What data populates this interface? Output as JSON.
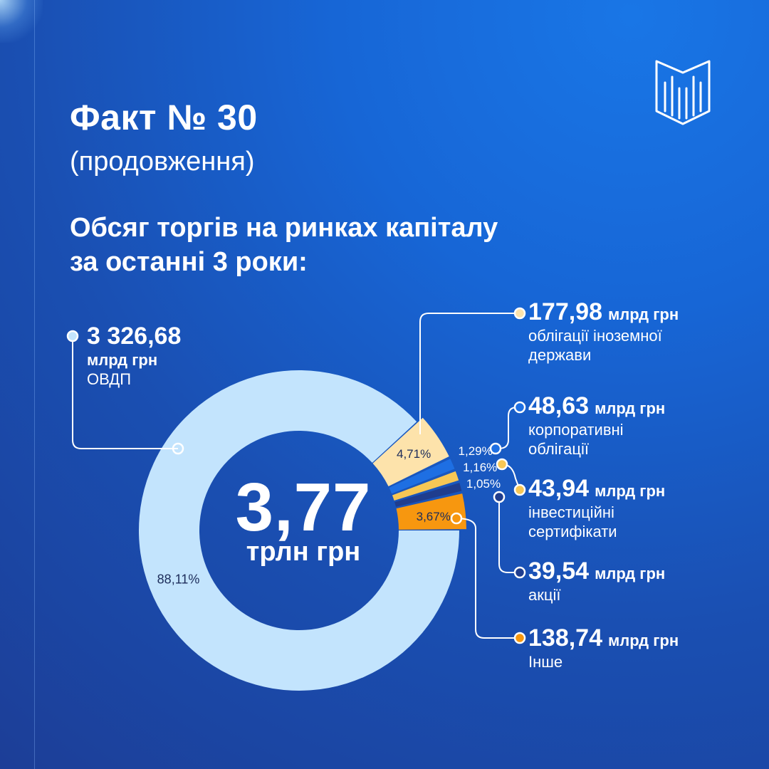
{
  "header": {
    "title": "Факт № 30",
    "subtitle": "(продовження)",
    "headline_line1": "Обсяг торгів на ринках капіталу",
    "headline_line2": "за останні 3 роки:"
  },
  "logo": {
    "icon": "book-columns-logo-icon"
  },
  "colors": {
    "ovdp": "#c3e4fd",
    "foreign": "#fde3ab",
    "corporate": "#1e6fe3",
    "investment": "#f7c755",
    "shares": "#1f3d8e",
    "other": "#f7970f"
  },
  "chart_data": {
    "type": "pie",
    "variant": "donut",
    "total": {
      "value": "3,77",
      "unit": "трлн грн"
    },
    "slices": [
      {
        "key": "ovdp",
        "amount": "3 326,68",
        "unit": "млрд грн",
        "label": "ОВДП",
        "percent": 88.11,
        "percent_label": "88,11%"
      },
      {
        "key": "foreign",
        "amount": "177,98",
        "unit": "млрд грн",
        "label_lines": [
          "облігації іноземної",
          "держави"
        ],
        "percent": 4.71,
        "percent_label": "4,71%"
      },
      {
        "key": "corporate",
        "amount": "48,63",
        "unit": "млрд грн",
        "label_lines": [
          "корпоративні",
          "облігації"
        ],
        "percent": 1.29,
        "percent_label": "1,29%"
      },
      {
        "key": "investment",
        "amount": "43,94",
        "unit": "млрд грн",
        "label_lines": [
          "інвестиційні",
          "сертифікати"
        ],
        "percent": 1.16,
        "percent_label": "1,16%"
      },
      {
        "key": "shares",
        "amount": "39,54",
        "unit": "млрд грн",
        "label": "акції",
        "percent": 1.05,
        "percent_label": "1,05%"
      },
      {
        "key": "other",
        "amount": "138,74",
        "unit": "млрд грн",
        "label": "Інше",
        "percent": 3.67,
        "percent_label": "3,67%"
      }
    ]
  }
}
